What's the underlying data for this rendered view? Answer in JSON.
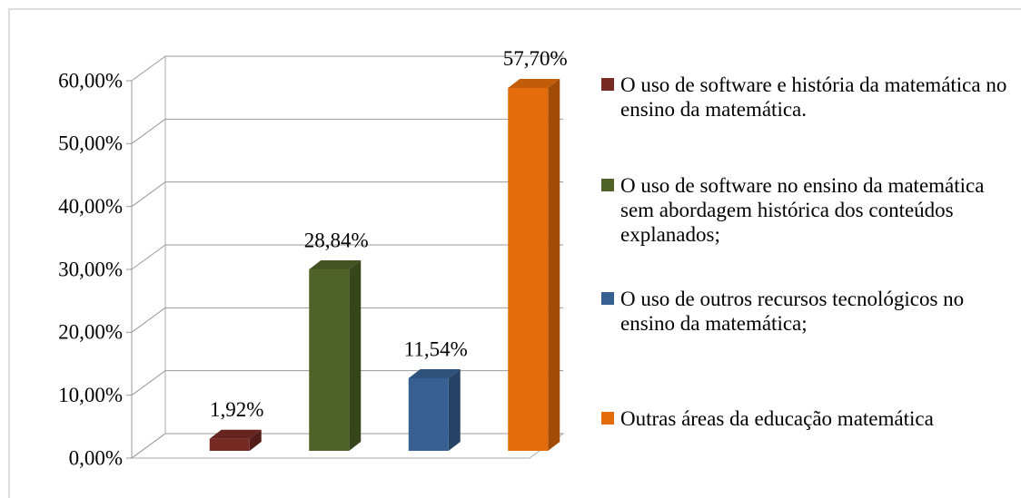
{
  "chart_data": {
    "type": "bar3d",
    "series": [
      {
        "name": "O uso de software e história da matemática no ensino da matemática.",
        "color": "#772a24",
        "values": [
          1.92
        ],
        "value_labels": [
          "1,92%"
        ]
      },
      {
        "name": "O uso de software no ensino da matemática sem abordagem histórica dos conteúdos explanados;",
        "color": "#4f6228",
        "values": [
          28.84
        ],
        "value_labels": [
          "28,84%"
        ]
      },
      {
        "name": "O uso de outros recursos tecnológicos no ensino da matemática;",
        "color": "#366092",
        "values": [
          11.54
        ],
        "value_labels": [
          "11,54%"
        ]
      },
      {
        "name": "Outras áreas da educação matemática",
        "color": "#e46c0a",
        "values": [
          57.7
        ],
        "value_labels": [
          "57,70%"
        ]
      }
    ],
    "ylim": [
      0,
      60
    ],
    "yticks": [
      {
        "value": 0,
        "label": "0,00%"
      },
      {
        "value": 10,
        "label": "10,00%"
      },
      {
        "value": 20,
        "label": "20,00%"
      },
      {
        "value": 30,
        "label": "30,00%"
      },
      {
        "value": 40,
        "label": "40,00%"
      },
      {
        "value": 50,
        "label": "50,00%"
      },
      {
        "value": 60,
        "label": "60,00%"
      }
    ],
    "grid": true,
    "legend": "right"
  }
}
